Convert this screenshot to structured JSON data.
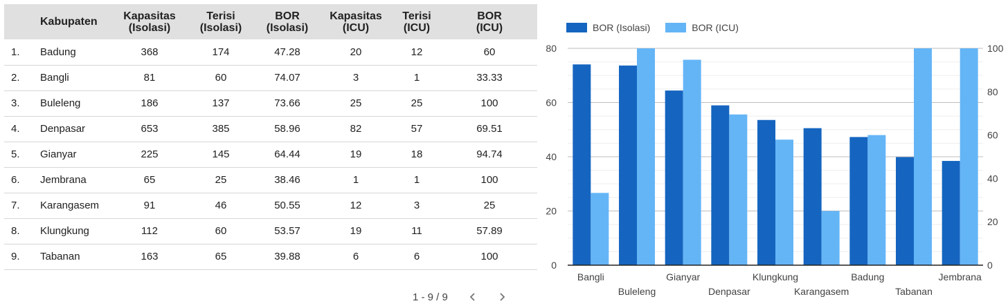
{
  "table": {
    "headers": {
      "no": "",
      "kabupaten": "Kabupaten",
      "kap_isolasi": [
        "Kapasitas",
        "(Isolasi)"
      ],
      "ter_isolasi": [
        "Terisi",
        "(Isolasi)"
      ],
      "bor_isolasi": [
        "BOR",
        "(Isolasi)"
      ],
      "kap_icu": [
        "Kapasitas",
        "(ICU)"
      ],
      "ter_icu": [
        "Terisi",
        "(ICU)"
      ],
      "bor_icu": [
        "BOR",
        "(ICU)"
      ]
    },
    "rows": [
      [
        "1.",
        "Badung",
        "368",
        "174",
        "47.28",
        "20",
        "12",
        "60"
      ],
      [
        "2.",
        "Bangli",
        "81",
        "60",
        "74.07",
        "3",
        "1",
        "33.33"
      ],
      [
        "3.",
        "Buleleng",
        "186",
        "137",
        "73.66",
        "25",
        "25",
        "100"
      ],
      [
        "4.",
        "Denpasar",
        "653",
        "385",
        "58.96",
        "82",
        "57",
        "69.51"
      ],
      [
        "5.",
        "Gianyar",
        "225",
        "145",
        "64.44",
        "19",
        "18",
        "94.74"
      ],
      [
        "6.",
        "Jembrana",
        "65",
        "25",
        "38.46",
        "1",
        "1",
        "100"
      ],
      [
        "7.",
        "Karangasem",
        "91",
        "46",
        "50.55",
        "12",
        "3",
        "25"
      ],
      [
        "8.",
        "Klungkung",
        "112",
        "60",
        "53.57",
        "19",
        "11",
        "57.89"
      ],
      [
        "9.",
        "Tabanan",
        "163",
        "65",
        "39.88",
        "6",
        "6",
        "100"
      ]
    ]
  },
  "pagination": {
    "label": "1 - 9 / 9"
  },
  "chart_data": {
    "type": "bar",
    "categories": [
      "Bangli",
      "Buleleng",
      "Gianyar",
      "Denpasar",
      "Klungkung",
      "Karangasem",
      "Badung",
      "Tabanan",
      "Jembrana"
    ],
    "series": [
      {
        "name": "BOR (Isolasi)",
        "axis": "left",
        "color": "#1565c0",
        "values": [
          74.07,
          73.66,
          64.44,
          58.96,
          53.57,
          50.55,
          47.28,
          39.88,
          38.46
        ]
      },
      {
        "name": "BOR (ICU)",
        "axis": "right",
        "color": "#64b5f6",
        "values": [
          33.33,
          100,
          94.74,
          69.51,
          57.89,
          25,
          60,
          100,
          100
        ]
      }
    ],
    "y_left": {
      "range": [
        0,
        80
      ],
      "ticks": [
        "0",
        "20",
        "40",
        "60",
        "80"
      ]
    },
    "y_right": {
      "range": [
        0,
        100
      ],
      "ticks": [
        "0",
        "20",
        "40",
        "60",
        "80",
        "100"
      ]
    },
    "grid": true,
    "legend_position": "top-left",
    "title": "",
    "xlabel": "",
    "ylabel": ""
  }
}
